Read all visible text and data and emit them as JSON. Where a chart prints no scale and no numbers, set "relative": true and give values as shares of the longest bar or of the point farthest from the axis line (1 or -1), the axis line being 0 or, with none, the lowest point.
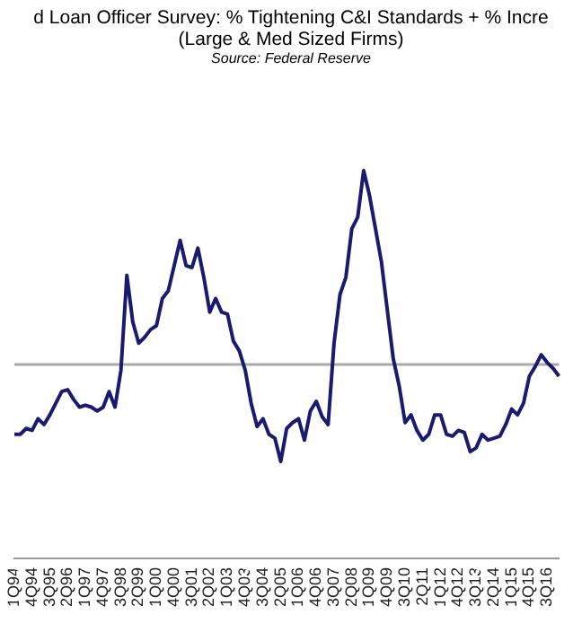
{
  "chart_data": {
    "type": "line",
    "title": "d Loan Officer Survey: % Tightening C&I Standards + % Incre",
    "subtitle": "(Large & Med Sized Firms)",
    "annotations": [
      "Source: Federal Reserve"
    ],
    "relative": true,
    "grid": false,
    "legend": false,
    "ref_lines": [
      {
        "axis": "y",
        "value": 0,
        "color": "#aaaaaa"
      }
    ],
    "marker": "none",
    "line_style": "solid",
    "categories": [
      "1Q94",
      null,
      null,
      "4Q94",
      null,
      null,
      "3Q95",
      null,
      null,
      "2Q96",
      null,
      null,
      "1Q97",
      null,
      null,
      "4Q97",
      null,
      null,
      "3Q98",
      null,
      null,
      "2Q99",
      null,
      null,
      "1Q00",
      null,
      null,
      "4Q00",
      null,
      null,
      "3Q01",
      null,
      null,
      "2Q02",
      null,
      null,
      "1Q03",
      null,
      null,
      "4Q03",
      null,
      null,
      "3Q04",
      null,
      null,
      "2Q05",
      null,
      null,
      "1Q06",
      null,
      null,
      "4Q06",
      null,
      null,
      "3Q07",
      null,
      null,
      "2Q08",
      null,
      null,
      "1Q09",
      null,
      null,
      "4Q09",
      null,
      null,
      "3Q10",
      null,
      null,
      "2Q11",
      null,
      null,
      "1Q12",
      null,
      null,
      "4Q12",
      null,
      null,
      "3Q13",
      null,
      null,
      "2Q14",
      null,
      null,
      "1Q15",
      null,
      null,
      "4Q15",
      null,
      null,
      "3Q16",
      null,
      null
    ],
    "series": [
      {
        "color": "#1a1a6e",
        "values": [
          -0.36,
          -0.36,
          -0.33,
          -0.34,
          -0.28,
          -0.31,
          -0.26,
          -0.2,
          -0.14,
          -0.13,
          -0.18,
          -0.22,
          -0.21,
          -0.22,
          -0.24,
          -0.22,
          -0.14,
          -0.22,
          -0.03,
          0.46,
          0.22,
          0.11,
          0.14,
          0.18,
          0.2,
          0.34,
          0.38,
          0.51,
          0.64,
          0.51,
          0.5,
          0.6,
          0.45,
          0.27,
          0.34,
          0.27,
          0.26,
          0.12,
          0.07,
          -0.03,
          -0.2,
          -0.32,
          -0.28,
          -0.36,
          -0.38,
          -0.5,
          -0.33,
          -0.3,
          -0.28,
          -0.39,
          -0.24,
          -0.19,
          -0.27,
          -0.31,
          0.11,
          0.36,
          0.45,
          0.7,
          0.76,
          1,
          0.87,
          0.7,
          0.53,
          0.28,
          0.03,
          -0.11,
          -0.3,
          -0.26,
          -0.34,
          -0.39,
          -0.36,
          -0.26,
          -0.26,
          -0.36,
          -0.37,
          -0.34,
          -0.35,
          -0.45,
          -0.43,
          -0.36,
          -0.39,
          -0.38,
          -0.37,
          -0.31,
          -0.23,
          -0.26,
          -0.2,
          -0.06,
          -0.01,
          0.05,
          0.01,
          -0.02,
          -0.06
        ]
      }
    ]
  }
}
